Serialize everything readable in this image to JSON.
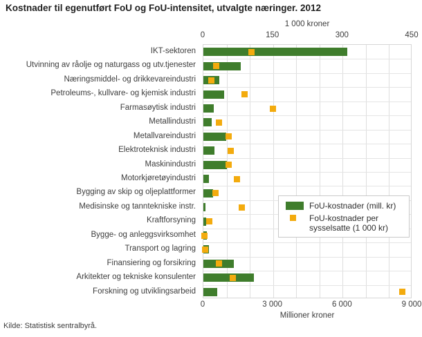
{
  "title": "Kostnader til egenutført FoU og FoU-intensitet, utvalgte næringer. 2012",
  "source": "Kilde: Statistisk sentralbyrå.",
  "colors": {
    "bar_green": "#3f7d2c",
    "marker_yellow": "#f3ab0e",
    "grid_vertical": "#dedede",
    "grid_horizontal": "#e4e4e4",
    "text": "#3c3c3c"
  },
  "legend": {
    "items": [
      {
        "label": "FoU-kostnader (mill. kr)",
        "type": "bar"
      },
      {
        "label": "FoU-kostnader per sysselsatte (1 000 kr)",
        "type": "marker"
      }
    ]
  },
  "chart_data": {
    "type": "bar",
    "orientation": "horizontal",
    "title": "Kostnader til egenutført FoU og FoU-intensitet, utvalgte næringer. 2012",
    "grid": true,
    "legend_position": "inside-right",
    "categories": [
      "IKT-sektoren",
      "Utvinning av råolje og naturgass og utv.tjenester",
      "Næringsmiddel- og drikkevareindustri",
      "Petroleums-, kullvare- og kjemisk industri",
      "Farmasøytisk industri",
      "Metallindustri",
      "Metallvareindustri",
      "Elektroteknisk industri",
      "Maskinindustri",
      "Motorkjøretøyindustri",
      "Bygging av skip og oljeplattformer",
      "Medisinske og tanntekniske instr.",
      "Kraftforsyning",
      "Bygge- og anleggsvirksomhet",
      "Transport og lagring",
      "Finansiering og forsikring",
      "Arkitekter og tekniske konsulenter",
      "Forskning og utviklingsarbeid"
    ],
    "series": [
      {
        "name": "FoU-kostnader (mill. kr)",
        "axis": "bottom",
        "unit": "mill. kr",
        "values": [
          6200,
          1620,
          690,
          900,
          440,
          360,
          980,
          480,
          1000,
          240,
          410,
          90,
          130,
          160,
          240,
          1300,
          2180,
          600
        ]
      },
      {
        "name": "FoU-kostnader per sysselsatte (1 000 kr)",
        "axis": "top",
        "unit": "1 000 kr",
        "values": [
          104,
          28,
          17,
          88,
          150,
          33,
          54,
          59,
          54,
          73,
          26,
          83,
          12,
          2,
          3,
          33,
          63,
          428
        ]
      }
    ],
    "axes": {
      "top": {
        "label": "1 000 kroner",
        "ticks": [
          "0",
          "150",
          "300",
          "450"
        ],
        "min": 0,
        "max": 450
      },
      "bottom": {
        "label": "Millioner kroner",
        "ticks": [
          "0",
          "3 000",
          "6 000",
          "9 000"
        ],
        "min": 0,
        "max": 9000
      }
    }
  }
}
